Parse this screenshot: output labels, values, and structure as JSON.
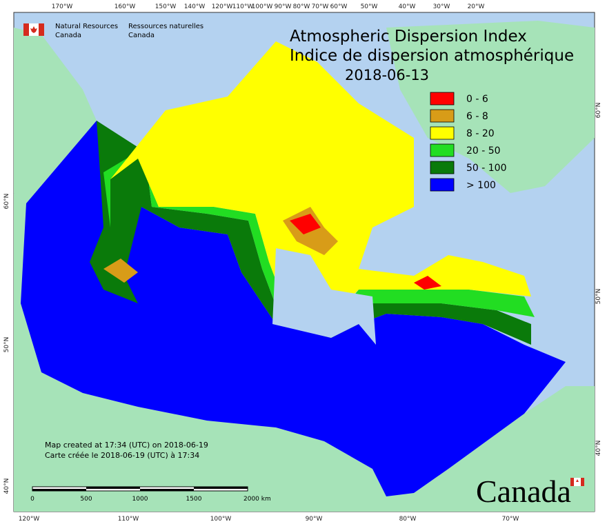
{
  "header": {
    "agency_en": [
      "Natural Resources",
      "Canada"
    ],
    "agency_fr": [
      "Ressources naturelles",
      "Canada"
    ]
  },
  "title": {
    "line1": "Atmospheric Dispersion Index",
    "line2": "Indice de dispersion atmosphérique",
    "date": "2018-06-13"
  },
  "legend": [
    {
      "label": "0 - 6",
      "color": "#ff0000"
    },
    {
      "label": "6 - 8",
      "color": "#d89c18"
    },
    {
      "label": "8 - 20",
      "color": "#ffff00"
    },
    {
      "label": "20 - 50",
      "color": "#22dd22"
    },
    {
      "label": "50 - 100",
      "color": "#0a7a0a"
    },
    {
      "label": "> 100",
      "color": "#0000ff"
    }
  ],
  "graticule": {
    "top": [
      "170°W",
      "160°W",
      "150°W",
      "140°W",
      "120°W",
      "110°W",
      "100°W",
      "90°W",
      "80°W",
      "70°W",
      "60°W",
      "50°W",
      "40°W",
      "30°W",
      "20°W"
    ],
    "bottom": [
      "120°W",
      "110°W",
      "100°W",
      "90°W",
      "80°W",
      "70°W"
    ],
    "left": [
      "60°N",
      "50°N",
      "40°N"
    ],
    "right": [
      "60°N",
      "50°N",
      "40°N"
    ]
  },
  "notes": [
    "Map created at 17:34 (UTC) on 2018-06-19",
    "Carte créée le 2018-06-19 (UTC) à 17:34"
  ],
  "scale_bar": [
    "0",
    "500",
    "1000",
    "1500",
    "2000 km"
  ],
  "wordmark": "Canada"
}
